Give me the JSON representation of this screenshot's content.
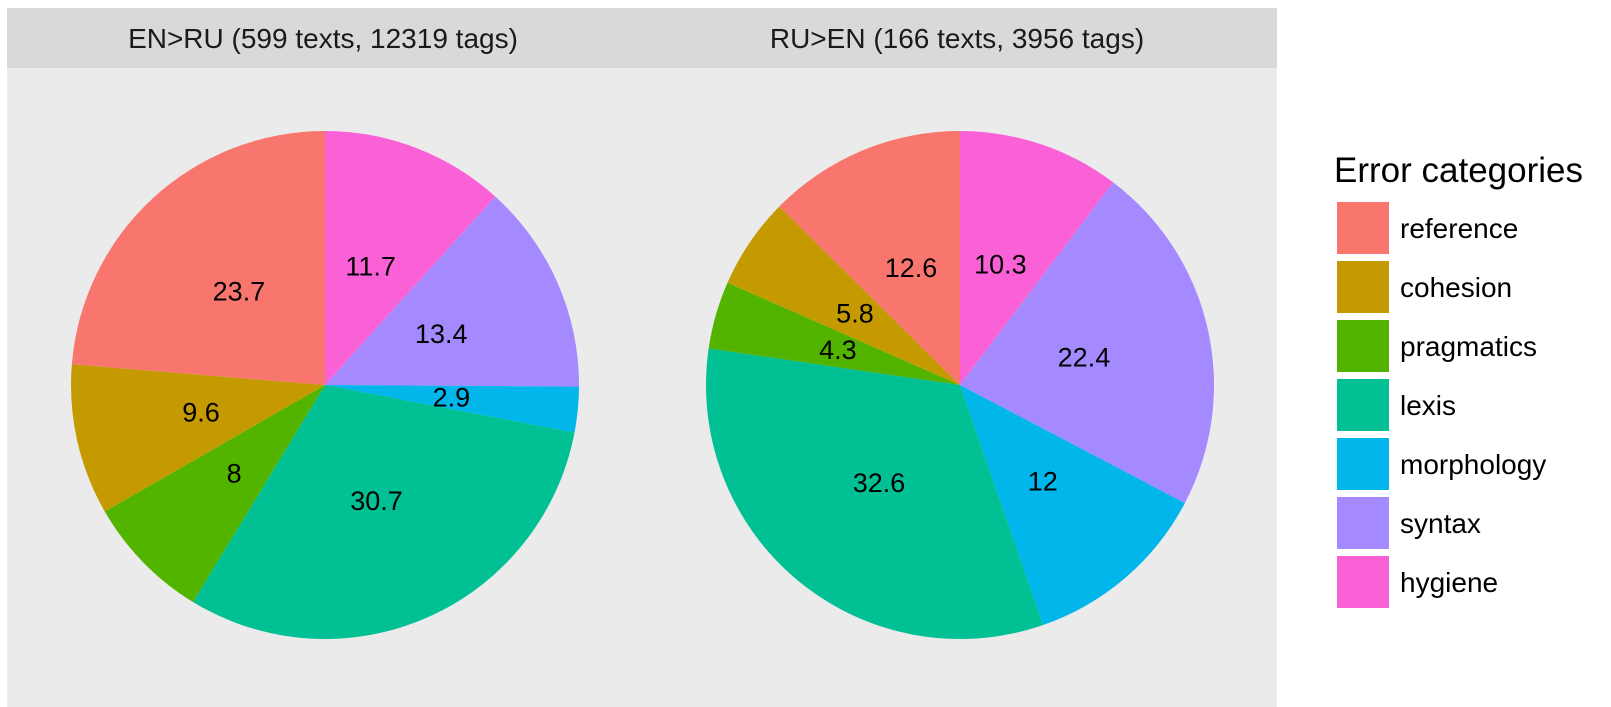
{
  "chart_data": {
    "type": "pie",
    "legend": {
      "title": "Error categories",
      "position": "right",
      "categories": [
        "reference",
        "cohesion",
        "pragmatics",
        "lexis",
        "morphology",
        "syntax",
        "hygiene"
      ]
    },
    "colors": {
      "reference": "#F8766D",
      "cohesion": "#C49A00",
      "pragmatics": "#53B400",
      "lexis": "#00C094",
      "morphology": "#00B6EB",
      "syntax": "#A58AFF",
      "hygiene": "#FB61D7"
    },
    "facets": [
      {
        "title": "EN>RU (599 texts, 12319 tags)",
        "values": {
          "reference": 23.7,
          "cohesion": 9.6,
          "pragmatics": 8,
          "lexis": 30.7,
          "morphology": 2.9,
          "syntax": 13.4,
          "hygiene": 11.7
        }
      },
      {
        "title": "RU>EN (166 texts, 3956 tags)",
        "values": {
          "reference": 12.6,
          "cohesion": 5.8,
          "pragmatics": 4.3,
          "lexis": 32.6,
          "morphology": 12,
          "syntax": 22.4,
          "hygiene": 10.3
        }
      }
    ]
  }
}
